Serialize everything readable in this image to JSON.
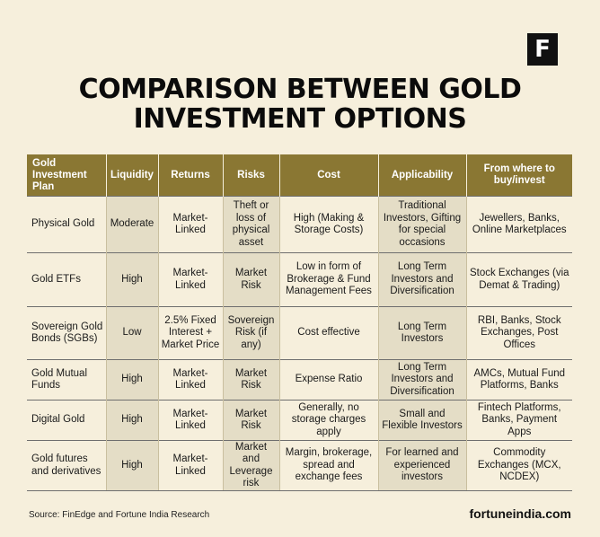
{
  "logo": "F",
  "title_line1": "COMPARISON BETWEEN GOLD",
  "title_line2": "INVESTMENT OPTIONS",
  "headers": [
    "Gold Investment Plan",
    "Liquidity",
    "Returns",
    "Risks",
    "Cost",
    "Applicability",
    "From where to buy/invest"
  ],
  "rows": [
    {
      "plan": "Physical Gold",
      "liquidity": "Moderate",
      "returns": "Market-Linked",
      "risks": "Theft or loss of physical asset",
      "cost": "High (Making & Storage Costs)",
      "applicability": "Traditional Investors, Gifting for special occasions",
      "where": "Jewellers, Banks, Online Marketplaces"
    },
    {
      "plan": "Gold ETFs",
      "liquidity": "High",
      "returns": "Market-Linked",
      "risks": "Market Risk",
      "cost": "Low in form of Brokerage & Fund Management Fees",
      "applicability": "Long Term Investors and Diversification",
      "where": "Stock Exchanges (via Demat & Trading)"
    },
    {
      "plan": "Sovereign Gold Bonds (SGBs)",
      "liquidity": "Low",
      "returns": "2.5% Fixed Interest + Market Price",
      "risks": "Sovereign Risk (if any)",
      "cost": "Cost effective",
      "applicability": "Long Term Investors",
      "where": "RBI, Banks, Stock Exchanges, Post Offices"
    },
    {
      "plan": "Gold Mutual Funds",
      "liquidity": "High",
      "returns": "Market-Linked",
      "risks": "Market Risk",
      "cost": "Expense Ratio",
      "applicability": "Long Term Investors and Diversification",
      "where": "AMCs, Mutual Fund Platforms, Banks"
    },
    {
      "plan": "Digital Gold",
      "liquidity": "High",
      "returns": "Market-Linked",
      "risks": "Market Risk",
      "cost": "Generally, no storage charges apply",
      "applicability": "Small and Flexible Investors",
      "where": "Fintech Platforms, Banks, Payment Apps"
    },
    {
      "plan": "Gold futures and derivatives",
      "liquidity": "High",
      "returns": "Market-Linked",
      "risks": "Market and Leverage risk",
      "cost": "Margin, brokerage, spread and exchange fees",
      "applicability": "For learned and experienced investors",
      "where": "Commodity Exchanges (MCX, NCDEX)"
    }
  ],
  "source": "Source: FinEdge and Fortune India Research",
  "brand": "fortuneindia.com"
}
